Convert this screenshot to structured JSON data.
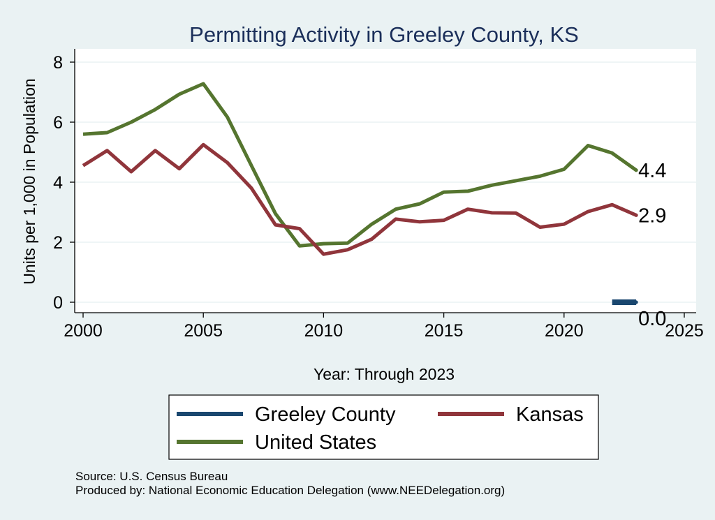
{
  "chart_data": {
    "type": "line",
    "title": "Permitting Activity in Greeley County, KS",
    "xlabel": "Year: Through 2023",
    "ylabel": "Units per 1,000 in Population",
    "xlim": [
      2000,
      2025
    ],
    "ylim": [
      0,
      8
    ],
    "xticks": [
      2000,
      2005,
      2010,
      2015,
      2020,
      2025
    ],
    "yticks": [
      0,
      2,
      4,
      6,
      8
    ],
    "grid": true,
    "legend_position": "bottom",
    "series": [
      {
        "name": "Greeley County",
        "color": "#1a476f",
        "x": [
          2022,
          2023
        ],
        "values": [
          0.0,
          0.0
        ],
        "end_label": "0.0"
      },
      {
        "name": "Kansas",
        "color": "#90353b",
        "x": [
          2000,
          2001,
          2002,
          2003,
          2004,
          2005,
          2006,
          2007,
          2008,
          2009,
          2010,
          2011,
          2012,
          2013,
          2014,
          2015,
          2016,
          2017,
          2018,
          2019,
          2020,
          2021,
          2022,
          2023
        ],
        "values": [
          4.55,
          5.05,
          4.35,
          5.05,
          4.45,
          5.25,
          4.65,
          3.8,
          2.58,
          2.45,
          1.6,
          1.75,
          2.1,
          2.77,
          2.68,
          2.73,
          3.1,
          2.98,
          2.97,
          2.5,
          2.6,
          3.02,
          3.25,
          2.9
        ],
        "end_label": "2.9"
      },
      {
        "name": "United States",
        "color": "#55752f",
        "x": [
          2000,
          2001,
          2002,
          2003,
          2004,
          2005,
          2006,
          2007,
          2008,
          2009,
          2010,
          2011,
          2012,
          2013,
          2014,
          2015,
          2016,
          2017,
          2018,
          2019,
          2020,
          2021,
          2022,
          2023
        ],
        "values": [
          5.6,
          5.65,
          6.0,
          6.42,
          6.93,
          7.28,
          6.17,
          4.55,
          2.95,
          1.88,
          1.95,
          1.97,
          2.6,
          3.1,
          3.28,
          3.67,
          3.7,
          3.9,
          4.05,
          4.2,
          4.43,
          5.22,
          4.97,
          4.4
        ],
        "end_label": "4.4"
      }
    ]
  },
  "legend": {
    "items": [
      {
        "label": "Greeley County",
        "color": "#1a476f"
      },
      {
        "label": "Kansas",
        "color": "#90353b"
      },
      {
        "label": "United States",
        "color": "#55752f"
      }
    ]
  },
  "notes": {
    "source": "Source: U.S. Census Bureau",
    "produced_by": "Produced by: National Economic Education Delegation (www.NEEDelegation.org)"
  }
}
